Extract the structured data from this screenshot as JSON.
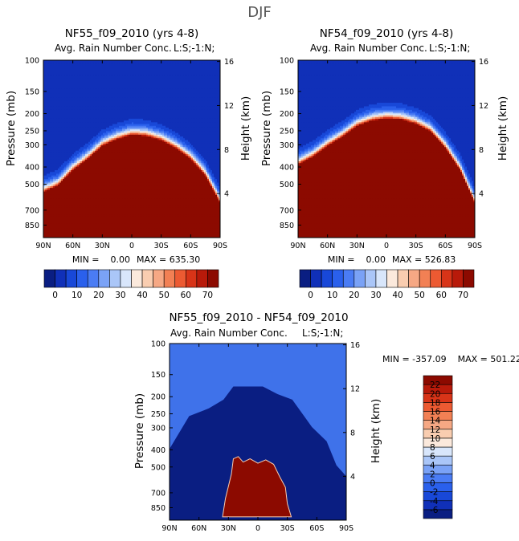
{
  "figure_title": "DJF",
  "chart_data": [
    {
      "type": "heatmap",
      "title": "NF55_f09_2010 (yrs 4-8)",
      "subtitle": "Avg. Rain Number Conc.",
      "corner_label": "L:S;-1:N;",
      "ylabel": "Pressure (mb)",
      "ylabel_right": "Height (km)",
      "x_ticks": [
        "90N",
        "60N",
        "30N",
        "0",
        "30S",
        "60S",
        "90S"
      ],
      "pressure_ticks": [
        "100",
        "150",
        "200",
        "250",
        "300",
        "400",
        "500",
        "700",
        "850"
      ],
      "height_ticks": [
        "16",
        "12",
        "8",
        "4"
      ],
      "ylim": [
        1000,
        100
      ],
      "stats_min": "MIN =    0.00",
      "stats_max": "MAX = 635.30",
      "min": 0.0,
      "max": 635.3,
      "colorbar_labels": [
        "0",
        "10",
        "20",
        "30",
        "40",
        "50",
        "60",
        "70"
      ],
      "colorbar_levels": [
        0,
        5,
        10,
        15,
        20,
        25,
        30,
        35,
        40,
        45,
        50,
        55,
        60,
        65,
        70
      ],
      "colors": [
        "#0a1e82",
        "#1030b8",
        "#1848d8",
        "#2a60ec",
        "#4a7cf4",
        "#7aa2f6",
        "#aac6f8",
        "#d8e6fb",
        "#fbe9dc",
        "#f9cdb0",
        "#f6a884",
        "#f28054",
        "#ec5a32",
        "#d83418",
        "#b81a0a",
        "#8c0a00"
      ],
      "tropopause_height_km": [
        4.0,
        4.6,
        6.0,
        7.0,
        8.2,
        8.8,
        9.2,
        9.1,
        8.7,
        8.0,
        7.0,
        5.5,
        3.0
      ],
      "field_lat": [
        90,
        75,
        60,
        45,
        30,
        15,
        0,
        -15,
        -30,
        -45,
        -60,
        -75,
        -90
      ]
    },
    {
      "type": "heatmap",
      "title": "NF54_f09_2010 (yrs 4-8)",
      "subtitle": "Avg. Rain Number Conc.",
      "corner_label": "L:S;-1:N;",
      "ylabel": "Pressure (mb)",
      "ylabel_right": "Height (km)",
      "x_ticks": [
        "90N",
        "60N",
        "30N",
        "0",
        "30S",
        "60S",
        "90S"
      ],
      "pressure_ticks": [
        "100",
        "150",
        "200",
        "250",
        "300",
        "400",
        "500",
        "700",
        "850"
      ],
      "height_ticks": [
        "16",
        "12",
        "8",
        "4"
      ],
      "ylim": [
        1000,
        100
      ],
      "stats_min": "MIN =    0.00",
      "stats_max": "MAX = 526.83",
      "min": 0.0,
      "max": 526.83,
      "colorbar_labels": [
        "0",
        "10",
        "20",
        "30",
        "40",
        "50",
        "60",
        "70"
      ],
      "colorbar_levels": [
        0,
        5,
        10,
        15,
        20,
        25,
        30,
        35,
        40,
        45,
        50,
        55,
        60,
        65,
        70
      ],
      "colors": [
        "#0a1e82",
        "#1030b8",
        "#1848d8",
        "#2a60ec",
        "#4a7cf4",
        "#7aa2f6",
        "#aac6f8",
        "#d8e6fb",
        "#fbe9dc",
        "#f9cdb0",
        "#f6a884",
        "#f28054",
        "#ec5a32",
        "#d83418",
        "#b81a0a",
        "#8c0a00"
      ],
      "tropopause_height_km": [
        6.5,
        7.2,
        8.2,
        9.0,
        10.0,
        10.5,
        10.7,
        10.6,
        10.2,
        9.5,
        8.0,
        6.0,
        3.0
      ],
      "field_lat": [
        90,
        75,
        60,
        45,
        30,
        15,
        0,
        -15,
        -30,
        -45,
        -60,
        -75,
        -90
      ]
    },
    {
      "type": "heatmap",
      "title": "NF55_f09_2010 - NF54_f09_2010",
      "subtitle": "Avg. Rain Number Conc.",
      "corner_label": "L:S;-1:N;",
      "ylabel": "Pressure (mb)",
      "ylabel_right": "Height (km)",
      "x_ticks": [
        "90N",
        "60N",
        "30N",
        "0",
        "30S",
        "60S",
        "90S"
      ],
      "pressure_ticks": [
        "100",
        "150",
        "200",
        "250",
        "300",
        "400",
        "500",
        "700",
        "850"
      ],
      "height_ticks": [
        "16",
        "12",
        "8",
        "4"
      ],
      "ylim": [
        1000,
        100
      ],
      "stats": "MIN = -357.09    MAX = 501.22",
      "min": -357.09,
      "max": 501.22,
      "colorbar_labels": [
        "-6",
        "-4",
        "-2",
        "0",
        "2",
        "4",
        "6",
        "8",
        "10",
        "12",
        "14",
        "16",
        "18",
        "20",
        "22"
      ],
      "colors": [
        "#0a1e82",
        "#1030b8",
        "#1848d8",
        "#2a60ec",
        "#4a7cf4",
        "#7aa2f6",
        "#aac6f8",
        "#d8e6fb",
        "#fbe9dc",
        "#f9cdb0",
        "#f6a884",
        "#f28054",
        "#ec5a32",
        "#d83418",
        "#b81a0a",
        "#8c0a00"
      ],
      "upper_difference_color": "#3f72ea",
      "middle_difference_color": "#0a1e82",
      "positive_difference_color": "#8c0a00"
    }
  ]
}
